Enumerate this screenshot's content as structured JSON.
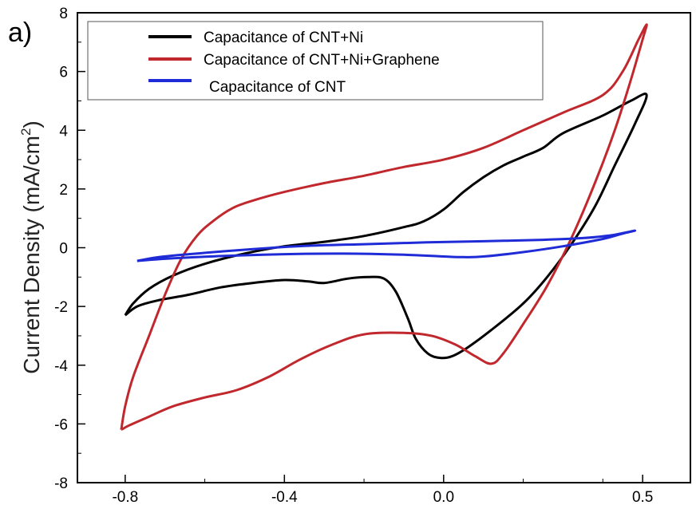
{
  "panel_label": "a)",
  "chart_data": {
    "type": "line",
    "title": "",
    "xlabel": "",
    "ylabel": "Current Density (mA/cm",
    "ylabel_sup": "2",
    "ylabel_close": ")",
    "xlim": [
      -0.92,
      0.62
    ],
    "ylim": [
      -8,
      8
    ],
    "x_ticks": [
      -0.8,
      -0.4,
      0.0,
      0.5
    ],
    "x_tick_labels": [
      "-0.8",
      "-0.4",
      "0.0",
      "0.5"
    ],
    "y_ticks": [
      -8,
      -6,
      -4,
      -2,
      0,
      2,
      4,
      6,
      8
    ],
    "y_tick_labels": [
      "-8",
      "-6",
      "-4",
      "-2",
      "0",
      "2",
      "4",
      "6",
      "8"
    ],
    "grid": false,
    "legend_position": "top-left",
    "series": [
      {
        "name": "Capacitance of CNT+Ni",
        "color": "#000000",
        "points": [
          [
            -0.8,
            -2.3
          ],
          [
            -0.78,
            -1.9
          ],
          [
            -0.74,
            -1.4
          ],
          [
            -0.68,
            -0.95
          ],
          [
            -0.6,
            -0.55
          ],
          [
            -0.5,
            -0.2
          ],
          [
            -0.4,
            0.05
          ],
          [
            -0.3,
            0.2
          ],
          [
            -0.2,
            0.4
          ],
          [
            -0.1,
            0.7
          ],
          [
            -0.05,
            0.9
          ],
          [
            0.0,
            1.3
          ],
          [
            0.05,
            1.9
          ],
          [
            0.1,
            2.4
          ],
          [
            0.15,
            2.8
          ],
          [
            0.2,
            3.1
          ],
          [
            0.25,
            3.4
          ],
          [
            0.3,
            3.9
          ],
          [
            0.4,
            4.5
          ],
          [
            0.47,
            5.0
          ],
          [
            0.51,
            5.2
          ],
          [
            0.48,
            4.2
          ],
          [
            0.43,
            2.8
          ],
          [
            0.38,
            1.4
          ],
          [
            0.32,
            0.1
          ],
          [
            0.26,
            -1.0
          ],
          [
            0.2,
            -1.9
          ],
          [
            0.12,
            -2.8
          ],
          [
            0.06,
            -3.4
          ],
          [
            0.02,
            -3.7
          ],
          [
            -0.01,
            -3.75
          ],
          [
            -0.04,
            -3.6
          ],
          [
            -0.07,
            -3.1
          ],
          [
            -0.09,
            -2.4
          ],
          [
            -0.12,
            -1.5
          ],
          [
            -0.15,
            -1.05
          ],
          [
            -0.19,
            -1.0
          ],
          [
            -0.24,
            -1.05
          ],
          [
            -0.3,
            -1.2
          ],
          [
            -0.34,
            -1.15
          ],
          [
            -0.4,
            -1.1
          ],
          [
            -0.48,
            -1.2
          ],
          [
            -0.56,
            -1.35
          ],
          [
            -0.64,
            -1.6
          ],
          [
            -0.72,
            -1.8
          ],
          [
            -0.77,
            -2.0
          ],
          [
            -0.8,
            -2.3
          ]
        ]
      },
      {
        "name": "Capacitance of CNT+Ni+Graphene",
        "color": "#c0282d",
        "points": [
          [
            -0.81,
            -6.2
          ],
          [
            -0.8,
            -5.4
          ],
          [
            -0.78,
            -4.4
          ],
          [
            -0.74,
            -3.0
          ],
          [
            -0.7,
            -1.6
          ],
          [
            -0.66,
            -0.4
          ],
          [
            -0.62,
            0.4
          ],
          [
            -0.58,
            0.9
          ],
          [
            -0.53,
            1.35
          ],
          [
            -0.48,
            1.6
          ],
          [
            -0.4,
            1.9
          ],
          [
            -0.3,
            2.2
          ],
          [
            -0.2,
            2.45
          ],
          [
            -0.1,
            2.75
          ],
          [
            0.0,
            3.0
          ],
          [
            0.1,
            3.4
          ],
          [
            0.2,
            4.0
          ],
          [
            0.3,
            4.6
          ],
          [
            0.4,
            5.2
          ],
          [
            0.45,
            6.0
          ],
          [
            0.49,
            7.1
          ],
          [
            0.51,
            7.6
          ],
          [
            0.5,
            7.1
          ],
          [
            0.47,
            5.7
          ],
          [
            0.43,
            4.0
          ],
          [
            0.38,
            2.2
          ],
          [
            0.32,
            0.3
          ],
          [
            0.26,
            -1.3
          ],
          [
            0.2,
            -2.6
          ],
          [
            0.15,
            -3.6
          ],
          [
            0.12,
            -3.95
          ],
          [
            0.08,
            -3.7
          ],
          [
            0.03,
            -3.3
          ],
          [
            -0.03,
            -3.0
          ],
          [
            -0.1,
            -2.9
          ],
          [
            -0.2,
            -2.95
          ],
          [
            -0.28,
            -3.3
          ],
          [
            -0.36,
            -3.8
          ],
          [
            -0.44,
            -4.4
          ],
          [
            -0.52,
            -4.85
          ],
          [
            -0.6,
            -5.1
          ],
          [
            -0.68,
            -5.4
          ],
          [
            -0.74,
            -5.75
          ],
          [
            -0.79,
            -6.05
          ],
          [
            -0.81,
            -6.2
          ]
        ]
      },
      {
        "name": "Capacitance of CNT",
        "color": "#1f2bd6",
        "points": [
          [
            -0.77,
            -0.45
          ],
          [
            -0.72,
            -0.33
          ],
          [
            -0.64,
            -0.22
          ],
          [
            -0.55,
            -0.12
          ],
          [
            -0.45,
            -0.02
          ],
          [
            -0.35,
            0.06
          ],
          [
            -0.2,
            0.12
          ],
          [
            -0.05,
            0.18
          ],
          [
            0.1,
            0.22
          ],
          [
            0.25,
            0.27
          ],
          [
            0.35,
            0.33
          ],
          [
            0.42,
            0.42
          ],
          [
            0.48,
            0.58
          ],
          [
            0.45,
            0.48
          ],
          [
            0.4,
            0.3
          ],
          [
            0.3,
            0.05
          ],
          [
            0.2,
            -0.15
          ],
          [
            0.1,
            -0.3
          ],
          [
            0.05,
            -0.32
          ],
          [
            0.0,
            -0.3
          ],
          [
            -0.1,
            -0.24
          ],
          [
            -0.25,
            -0.2
          ],
          [
            -0.4,
            -0.22
          ],
          [
            -0.55,
            -0.28
          ],
          [
            -0.68,
            -0.36
          ],
          [
            -0.77,
            -0.45
          ]
        ]
      }
    ]
  }
}
